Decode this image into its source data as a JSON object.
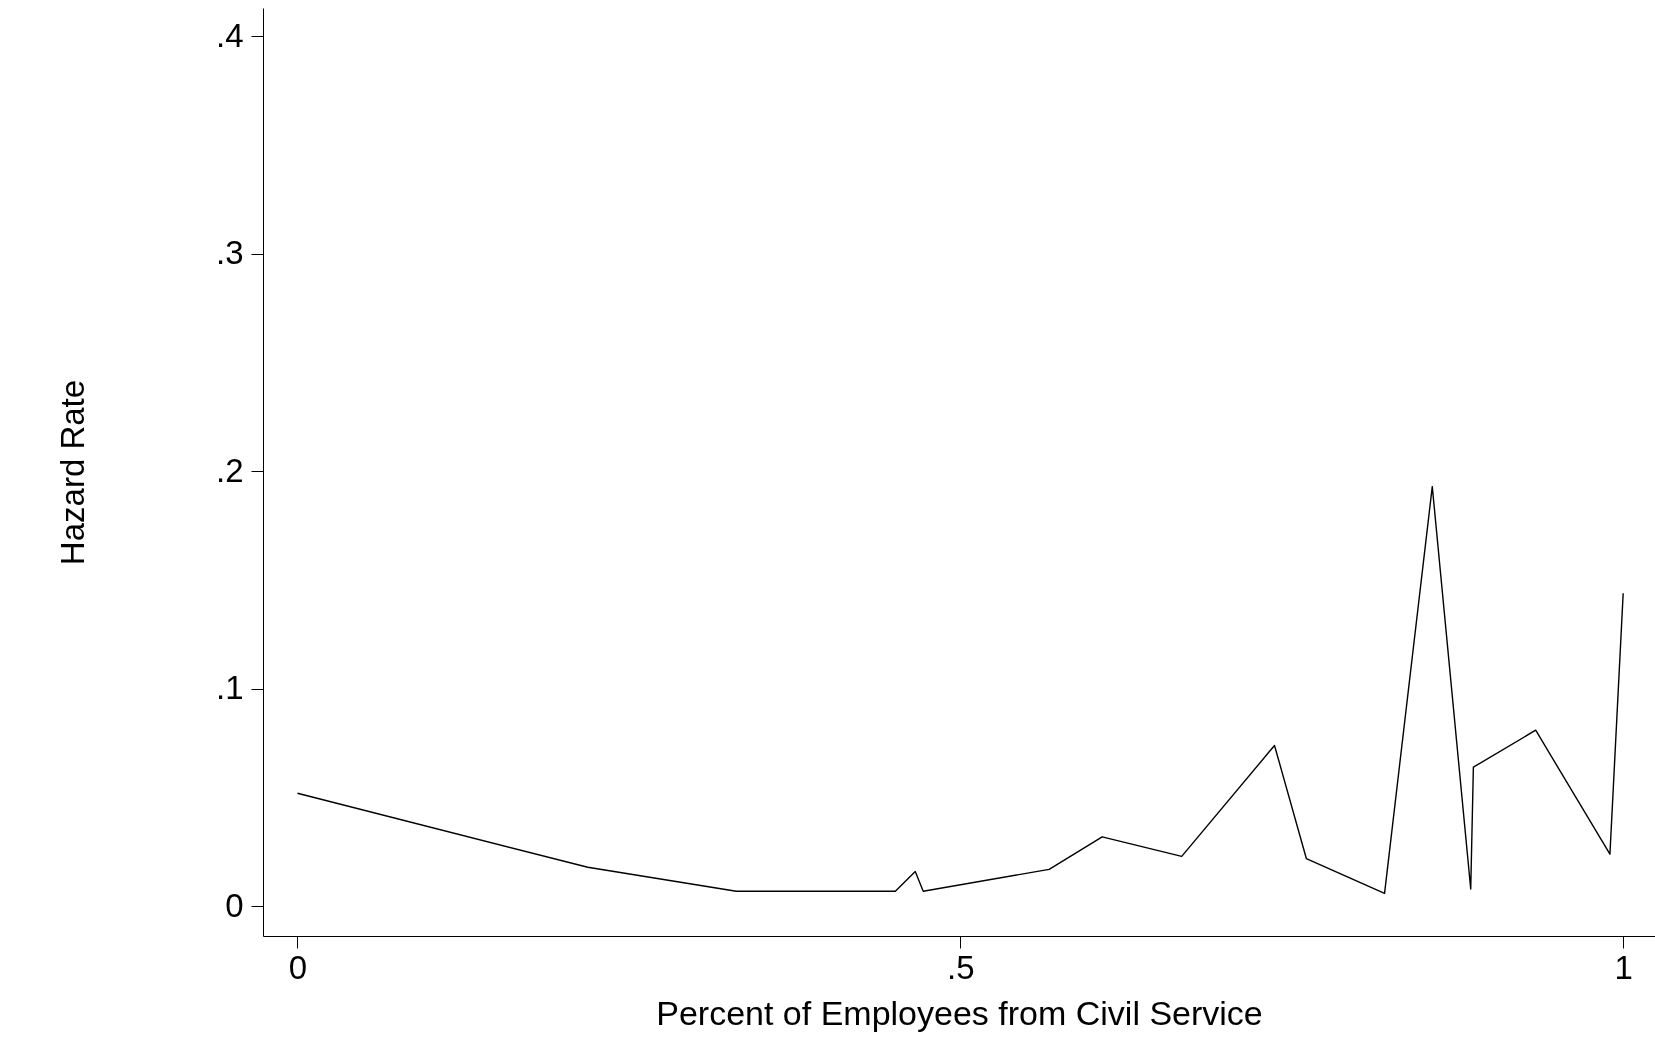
{
  "chart_data": {
    "type": "line",
    "xlabel": "Percent of Employees from Civil Service",
    "ylabel": "Hazard Rate",
    "x": [
      0,
      0.219,
      0.331,
      0.451,
      0.466,
      0.472,
      0.567,
      0.607,
      0.667,
      0.737,
      0.761,
      0.82,
      0.856,
      0.885,
      0.887,
      0.934,
      0.99,
      1.0
    ],
    "series": [
      {
        "color": "#000000",
        "values": [
          0.052,
          0.018,
          0.007,
          0.007,
          0.016,
          0.007,
          0.017,
          0.032,
          0.023,
          0.074,
          0.022,
          0.006,
          0.193,
          0.008,
          0.064,
          0.081,
          0.024,
          0.144
        ]
      }
    ],
    "xlim": [
      -0.026,
      1.024
    ],
    "ylim": [
      -0.0136,
      0.413
    ],
    "xticks": [
      0,
      {
        "value": 0.5,
        "label": ".5"
      },
      1
    ],
    "yticks": [
      0,
      {
        "value": 0.1,
        "label": ".1"
      },
      {
        "value": 0.2,
        "label": ".2"
      },
      {
        "value": 0.3,
        "label": ".3"
      },
      {
        "value": 0.4,
        "label": ".4"
      }
    ],
    "grid": false,
    "marker": "none",
    "line_style": "solid"
  }
}
